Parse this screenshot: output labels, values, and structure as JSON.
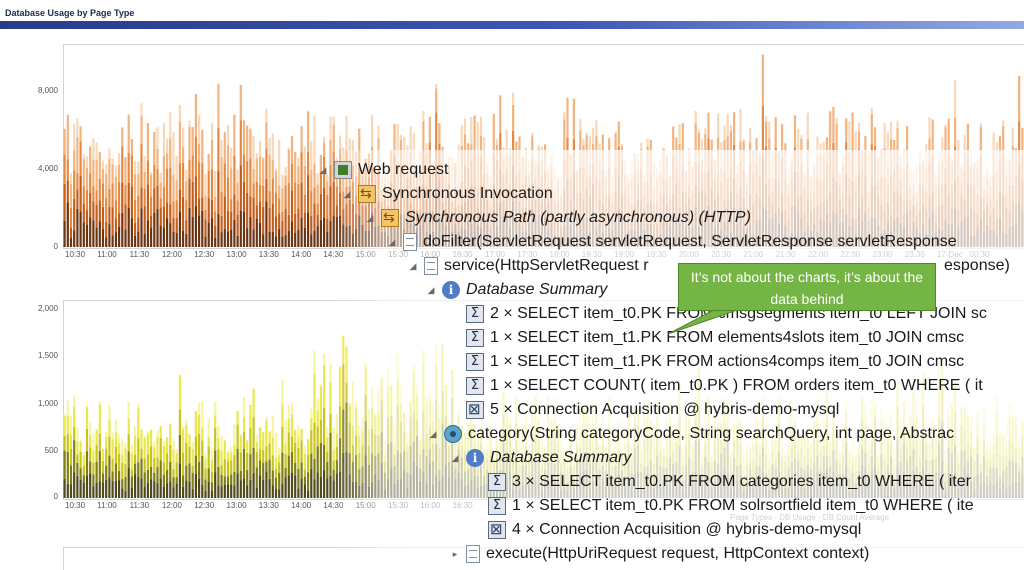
{
  "window": {
    "title": "Database Usage by Page Type"
  },
  "chart_top": {
    "y_ticks": [
      "0",
      "4,000",
      "8,000"
    ],
    "x_ticks": [
      "10:30",
      "11:00",
      "11:30",
      "12:00",
      "12:30",
      "13:00",
      "13:30",
      "14:00",
      "14:30",
      "15:00",
      "15:30",
      "16:00",
      "16:30",
      "17:00",
      "17:30",
      "18:00",
      "18:30",
      "19:00",
      "19:30",
      "20:00",
      "20:30",
      "21:00",
      "21:30",
      "22:00",
      "22:30",
      "23:00",
      "23:30",
      "17-Dec",
      "00:30"
    ],
    "palette": [
      "#6a3410",
      "#c25d1c",
      "#e58a45",
      "#f2b47f",
      "#f9d8b9"
    ]
  },
  "chart_bottom": {
    "y_ticks": [
      "0",
      "500",
      "1,000",
      "1,500",
      "2,000"
    ],
    "x_ticks": [
      "10:30",
      "11:00",
      "11:30",
      "12:00",
      "12:30",
      "13:00",
      "13:30",
      "14:00",
      "14:30",
      "15:00",
      "15:30",
      "16:00",
      "16:30"
    ],
    "legend": "Page Types - DB Usage - DB Count  Average",
    "palette": [
      "#4e4a1c",
      "#7f7d13",
      "#c8c41a",
      "#e8e84a",
      "#f6f6a0"
    ]
  },
  "tree": {
    "nodes": [
      {
        "text": "Web request"
      },
      {
        "text": "Synchronous Invocation"
      },
      {
        "text": "Synchronous Path (partly asynchronous) (HTTP)"
      },
      {
        "text": "doFilter(ServletRequest servletRequest, ServletResponse servletResponse"
      },
      {
        "text": "service(HttpServletRequest r"
      },
      {
        "text": "Database Summary"
      },
      {
        "text": "2 × SELECT  item_t0.PK  FROM cmsgsegments item_t0 LEFT JOIN sc"
      },
      {
        "text": "1 × SELECT  item_t1.PK  FROM elements4slots item_t0 JOIN cmsc"
      },
      {
        "text": "1 × SELECT  item_t1.PK  FROM actions4comps item_t0 JOIN cmsc"
      },
      {
        "text": "1 × SELECT COUNT( item_t0.PK ) FROM orders item_t0 WHERE ( it"
      },
      {
        "text": "5 × Connection Acquisition @ hybris-demo-mysql"
      },
      {
        "text": "category(String categoryCode, String searchQuery, int page, Abstrac"
      },
      {
        "text": "Database Summary"
      },
      {
        "text": "3 × SELECT  item_t0.PK  FROM categories item_t0 WHERE ( iter"
      },
      {
        "text": "1 × SELECT  item_t0.PK  FROM solrsortfield item_t0 WHERE ( ite"
      },
      {
        "text": "4 × Connection Acquisition @ hybris-demo-mysql"
      },
      {
        "text": "execute(HttpUriRequest request, HttpContext context)"
      }
    ],
    "service_tail": "esponse)"
  },
  "callout": {
    "text": "It’s not about the charts, it’s about the data behind"
  }
}
